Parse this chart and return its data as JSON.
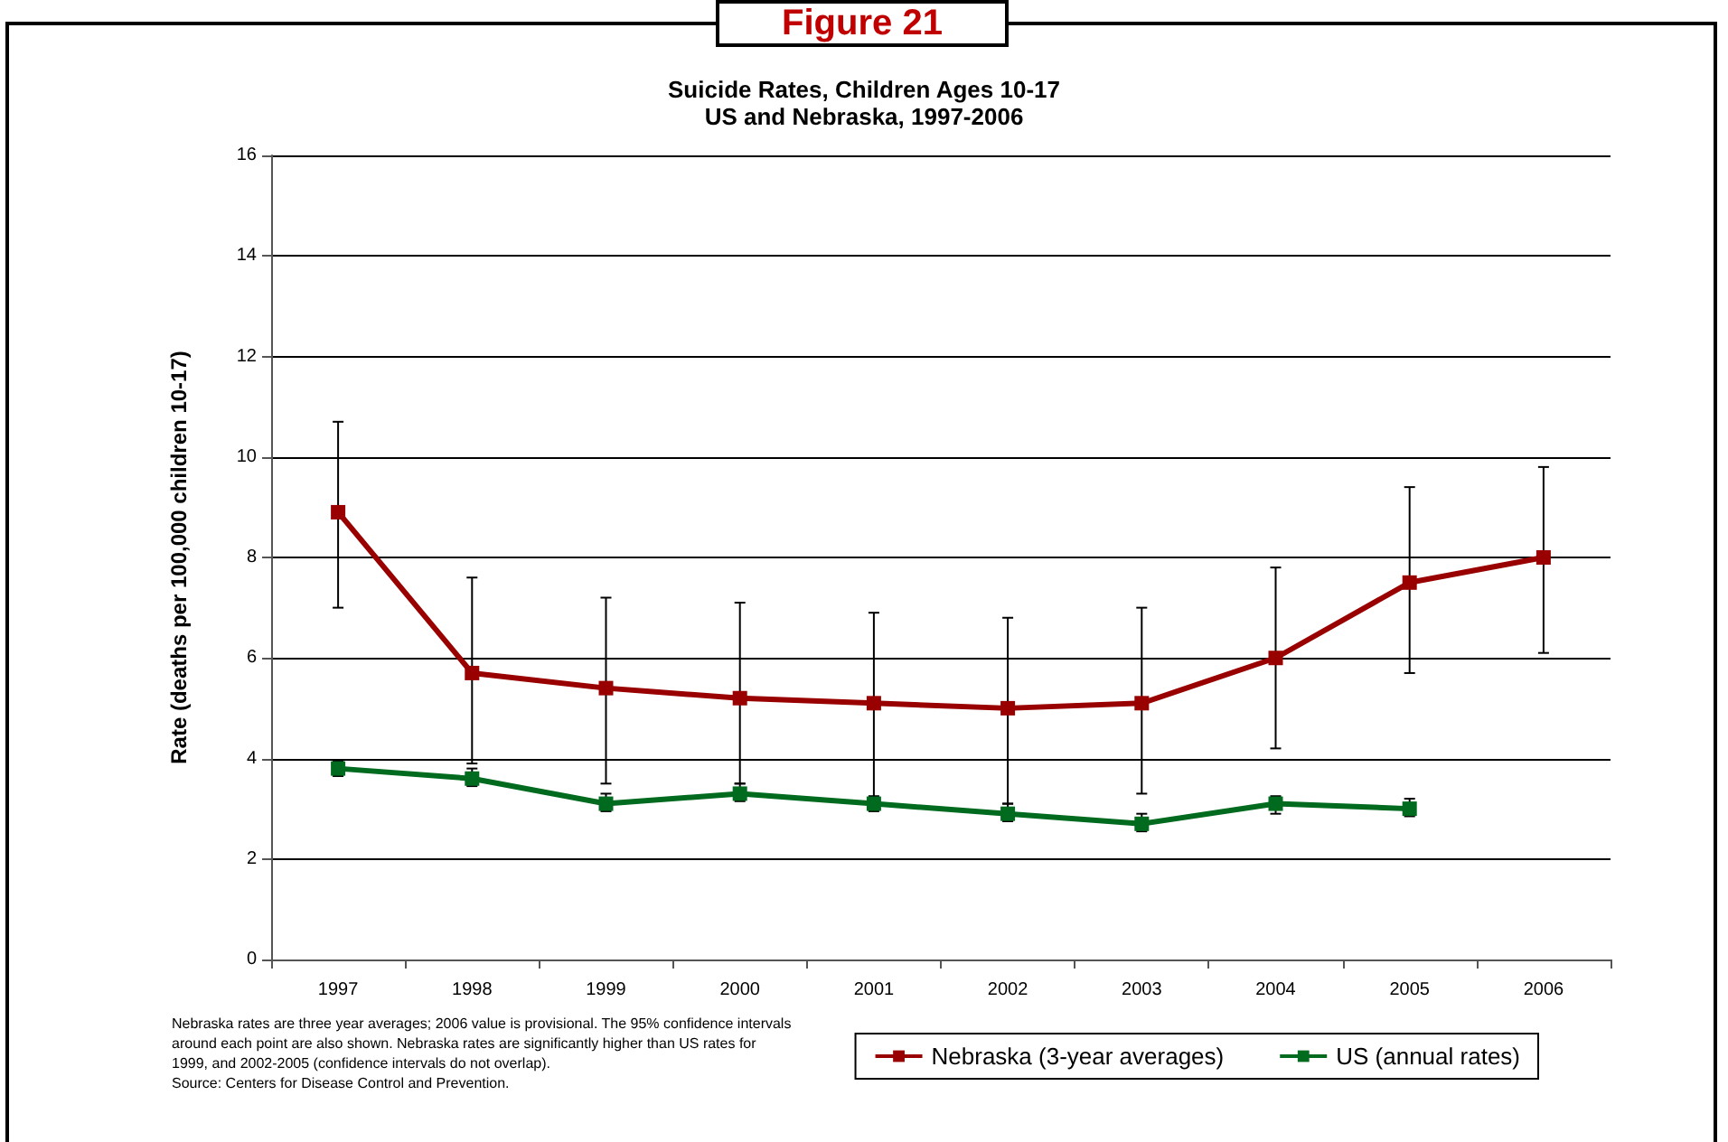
{
  "chart_data": {
    "type": "line",
    "title": "Suicide Rates, Children Ages 10-17\nUS and Nebraska, 1997-2006",
    "ylabel": "Rate (deaths per 100,000 children 10-17)",
    "categories": [
      "1997",
      "1998",
      "1999",
      "2000",
      "2001",
      "2002",
      "2003",
      "2004",
      "2005",
      "2006"
    ],
    "series": [
      {
        "name": "Nebraska (3-year averages)",
        "color": "#990000",
        "values": [
          8.9,
          5.7,
          5.4,
          5.2,
          5.1,
          5.0,
          5.1,
          6.0,
          7.5,
          8.0
        ],
        "errors": [
          [
            7.0,
            10.7
          ],
          [
            3.9,
            7.6
          ],
          [
            3.5,
            7.2
          ],
          [
            3.5,
            7.1
          ],
          [
            3.2,
            6.9
          ],
          [
            3.1,
            6.8
          ],
          [
            3.3,
            7.0
          ],
          [
            4.2,
            7.8
          ],
          [
            5.7,
            9.4
          ],
          [
            6.1,
            9.8
          ]
        ]
      },
      {
        "name": "US (annual rates)",
        "color": "#006a1e",
        "values": [
          3.8,
          3.6,
          3.1,
          3.3,
          3.1,
          2.9,
          2.7,
          3.1,
          3.0,
          null
        ],
        "errors": [
          [
            3.65,
            3.95
          ],
          [
            3.45,
            3.8
          ],
          [
            2.95,
            3.3
          ],
          [
            3.15,
            3.5
          ],
          [
            2.95,
            3.25
          ],
          [
            2.75,
            3.1
          ],
          [
            2.55,
            2.9
          ],
          [
            2.9,
            3.25
          ],
          [
            2.85,
            3.2
          ],
          null
        ]
      }
    ],
    "ylim": [
      0,
      16
    ],
    "yticks": [
      0,
      2,
      4,
      6,
      8,
      10,
      12,
      14,
      16
    ],
    "grid": "y",
    "legend": "bottom right",
    "marker": "square",
    "line_style": "solid",
    "annotations": [
      "Figure 21",
      "Nebraska rates are three year averages; 2006 value is provisional.  The 95% confidence intervals around each point are also shown.  Nebraska rates are significantly higher than US rates for 1999, and 2002-2005 (confidence intervals do not overlap).",
      "Source: Centers for Disease Control and Prevention."
    ]
  }
}
